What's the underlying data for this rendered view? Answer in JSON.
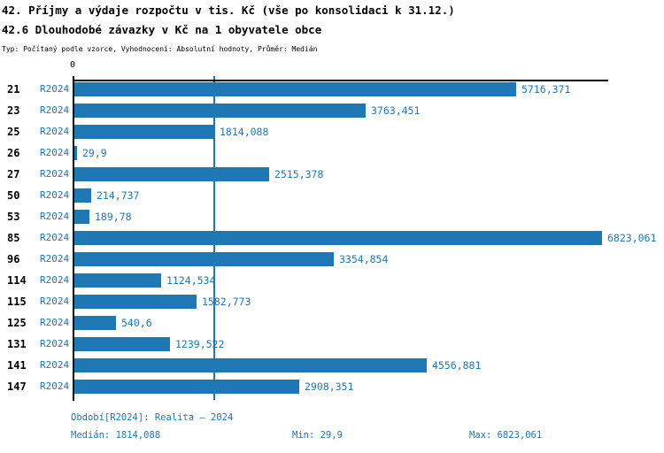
{
  "title": "42. Příjmy a výdaje rozpočtu v tis. Kč (vše po konsolidaci k 31.12.)",
  "subtitle": "42.6 Dlouhodobé závazky v Kč na 1 obyvatele obce",
  "meta_line": "Typ: Počítaný podle vzorce, Vyhodnocení: Absolutní hodnoty, Průměr: Medián",
  "colors": {
    "bar": "#1f77b4",
    "accent_text": "#1f77b4",
    "axis": "#000000",
    "background": "#ffffff"
  },
  "chart_data": {
    "type": "bar",
    "orientation": "horizontal",
    "title": "42.6 Dlouhodobé závazky v Kč na 1 obyvatele obce",
    "series_label": "R2024",
    "categories": [
      "21",
      "23",
      "25",
      "26",
      "27",
      "50",
      "53",
      "85",
      "96",
      "114",
      "115",
      "125",
      "131",
      "141",
      "147"
    ],
    "values": [
      5716.371,
      3763.451,
      1814.088,
      29.9,
      2515.378,
      214.737,
      189.78,
      6823.061,
      3354.854,
      1124.534,
      1582.773,
      540.6,
      1239.522,
      4556.881,
      2908.351
    ],
    "value_labels": [
      "5716,371",
      "3763,451",
      "1814,088",
      "29,9",
      "2515,378",
      "214,737",
      "189,78",
      "6823,061",
      "3354,854",
      "1124,534",
      "1582,773",
      "540,6",
      "1239,522",
      "4556,881",
      "2908,351"
    ],
    "xlim": [
      0,
      6823.061
    ],
    "x_tick_labels": [
      "0"
    ],
    "median_value": 1814.088,
    "grid": false,
    "legend_position": "none"
  },
  "footer": {
    "period": "Období[R2024]: Realita – 2024",
    "median": "Medián: 1814,088",
    "min": "Min: 29,9",
    "max": "Max: 6823,061"
  }
}
